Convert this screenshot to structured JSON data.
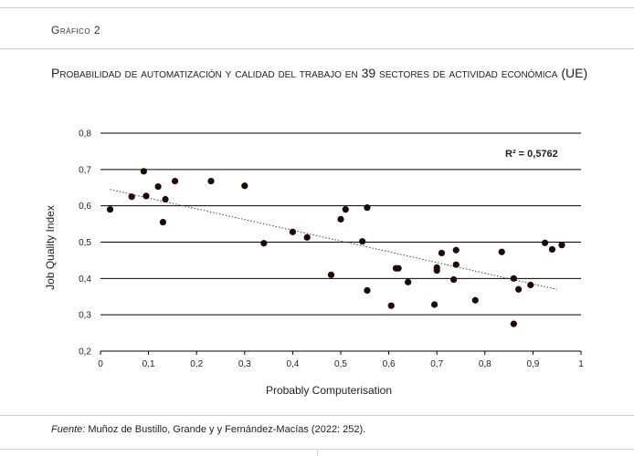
{
  "figure": {
    "label": "Gráfico 2",
    "title": "Probabilidad de automatización y calidad del trabajo en 39 sectores de actividad económica (UE)",
    "source_prefix": "Fuente:",
    "source_text": " Muñoz de Bustillo, Grande y y Fernández-Macías (2022: 252)."
  },
  "chart_data": {
    "type": "scatter",
    "xlabel": "Probably Computerisation",
    "ylabel": "Job Quality Index",
    "xlim": [
      0,
      1
    ],
    "ylim": [
      0.2,
      0.8
    ],
    "x_ticks": [
      "0",
      "0,1",
      "0,2",
      "0,3",
      "0,4",
      "0,5",
      "0,6",
      "0,7",
      "0,8",
      "0,9",
      "1"
    ],
    "y_ticks": [
      "0,2",
      "0,3",
      "0,4",
      "0,5",
      "0,6",
      "0,7",
      "0,8"
    ],
    "grid": "horizontal",
    "annotation": "R² = 0,5762",
    "trendline": {
      "style": "dotted",
      "x": [
        0.02,
        0.95
      ],
      "y": [
        0.645,
        0.37
      ]
    },
    "points": [
      [
        0.02,
        0.59
      ],
      [
        0.065,
        0.625
      ],
      [
        0.09,
        0.695
      ],
      [
        0.095,
        0.627
      ],
      [
        0.12,
        0.653
      ],
      [
        0.13,
        0.555
      ],
      [
        0.135,
        0.618
      ],
      [
        0.155,
        0.668
      ],
      [
        0.23,
        0.668
      ],
      [
        0.3,
        0.655
      ],
      [
        0.34,
        0.497
      ],
      [
        0.4,
        0.528
      ],
      [
        0.43,
        0.513
      ],
      [
        0.48,
        0.41
      ],
      [
        0.5,
        0.563
      ],
      [
        0.51,
        0.59
      ],
      [
        0.545,
        0.502
      ],
      [
        0.555,
        0.595
      ],
      [
        0.555,
        0.367
      ],
      [
        0.605,
        0.325
      ],
      [
        0.615,
        0.428
      ],
      [
        0.62,
        0.428
      ],
      [
        0.64,
        0.39
      ],
      [
        0.695,
        0.328
      ],
      [
        0.7,
        0.43
      ],
      [
        0.7,
        0.422
      ],
      [
        0.71,
        0.47
      ],
      [
        0.735,
        0.397
      ],
      [
        0.74,
        0.478
      ],
      [
        0.74,
        0.438
      ],
      [
        0.78,
        0.34
      ],
      [
        0.835,
        0.473
      ],
      [
        0.86,
        0.4
      ],
      [
        0.86,
        0.275
      ],
      [
        0.87,
        0.37
      ],
      [
        0.895,
        0.382
      ],
      [
        0.925,
        0.498
      ],
      [
        0.94,
        0.48
      ],
      [
        0.96,
        0.492
      ]
    ]
  }
}
